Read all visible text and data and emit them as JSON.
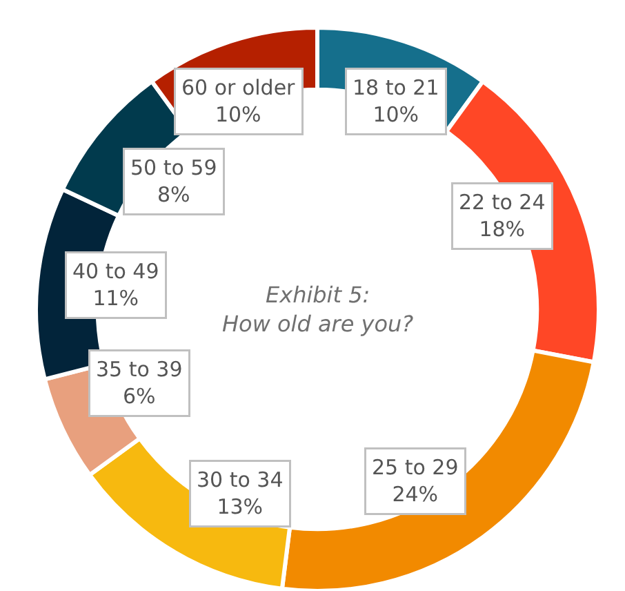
{
  "chart_data": {
    "type": "donut",
    "title": "Exhibit 5:\nHow old are you?",
    "categories": [
      "18 to 21",
      "22 to 24",
      "25 to 29",
      "30 to 34",
      "35 to 39",
      "40 to 49",
      "50 to 59",
      "60 or older"
    ],
    "values": [
      10,
      18,
      24,
      13,
      6,
      11,
      8,
      10
    ],
    "value_labels": [
      "10%",
      "18%",
      "24%",
      "13%",
      "6%",
      "11%",
      "8%",
      "10%"
    ],
    "colors": [
      "#156f8c",
      "#ff4726",
      "#f28a00",
      "#f7b90f",
      "#e8a07e",
      "#02243a",
      "#013a4d",
      "#b52000"
    ],
    "legend": false
  }
}
